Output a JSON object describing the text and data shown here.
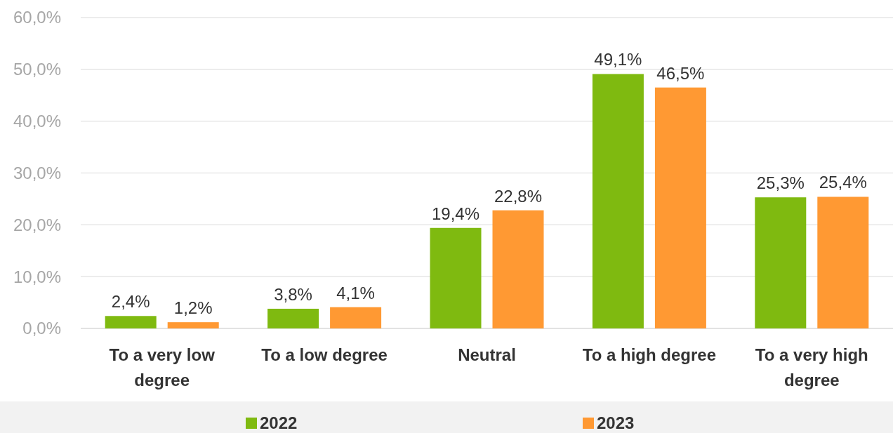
{
  "chart_data": {
    "type": "bar",
    "categories": [
      "To a very low degree",
      "To a low degree",
      "Neutral",
      "To a high degree",
      "To a very high degree"
    ],
    "series": [
      {
        "name": "2022",
        "color": "#7fba10",
        "values": [
          2.4,
          3.8,
          19.4,
          49.1,
          25.3
        ],
        "value_labels": [
          "2,4%",
          "3,8%",
          "19,4%",
          "49,1%",
          "25,3%"
        ]
      },
      {
        "name": "2023",
        "color": "#ff9933",
        "values": [
          1.2,
          4.1,
          22.8,
          46.5,
          25.4
        ],
        "value_labels": [
          "1,2%",
          "4,1%",
          "22,8%",
          "46,5%",
          "25,4%"
        ]
      }
    ],
    "ylim": [
      0,
      60
    ],
    "yticks": [
      {
        "value": 0,
        "label": "0,0%"
      },
      {
        "value": 10,
        "label": "10,0%"
      },
      {
        "value": 20,
        "label": "20,0%"
      },
      {
        "value": 30,
        "label": "30,0%"
      },
      {
        "value": 40,
        "label": "40,0%"
      },
      {
        "value": 50,
        "label": "50,0%"
      },
      {
        "value": 60,
        "label": "60,0%"
      }
    ],
    "grid": "y",
    "legend": "bottom"
  }
}
